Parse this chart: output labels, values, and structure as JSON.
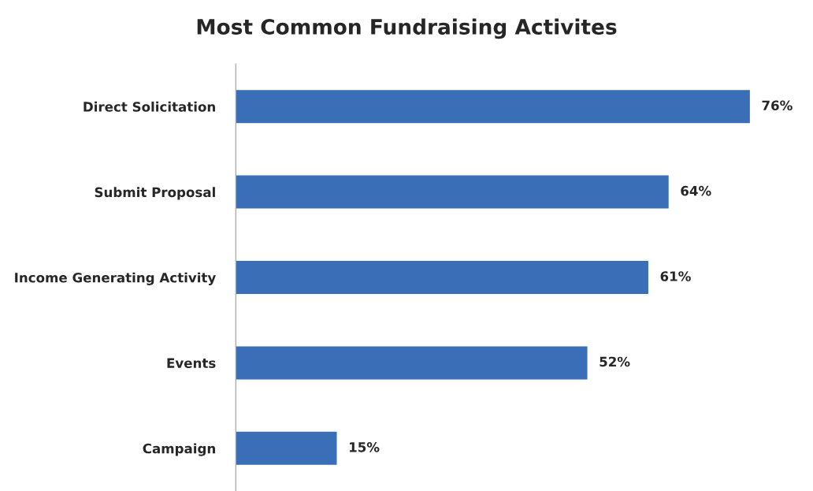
{
  "chart_data": {
    "type": "bar",
    "title": "Most Common Fundraising Activites",
    "orientation": "horizontal",
    "categories": [
      "Direct Solicitation",
      "Submit Proposal",
      "Income Generating Activity",
      "Events",
      "Campaign"
    ],
    "values": [
      76,
      64,
      61,
      52,
      15
    ],
    "value_labels": [
      "76%",
      "64%",
      "61%",
      "52%",
      "15%"
    ],
    "color": "#3a6fb8",
    "grid": false,
    "legend": false
  }
}
